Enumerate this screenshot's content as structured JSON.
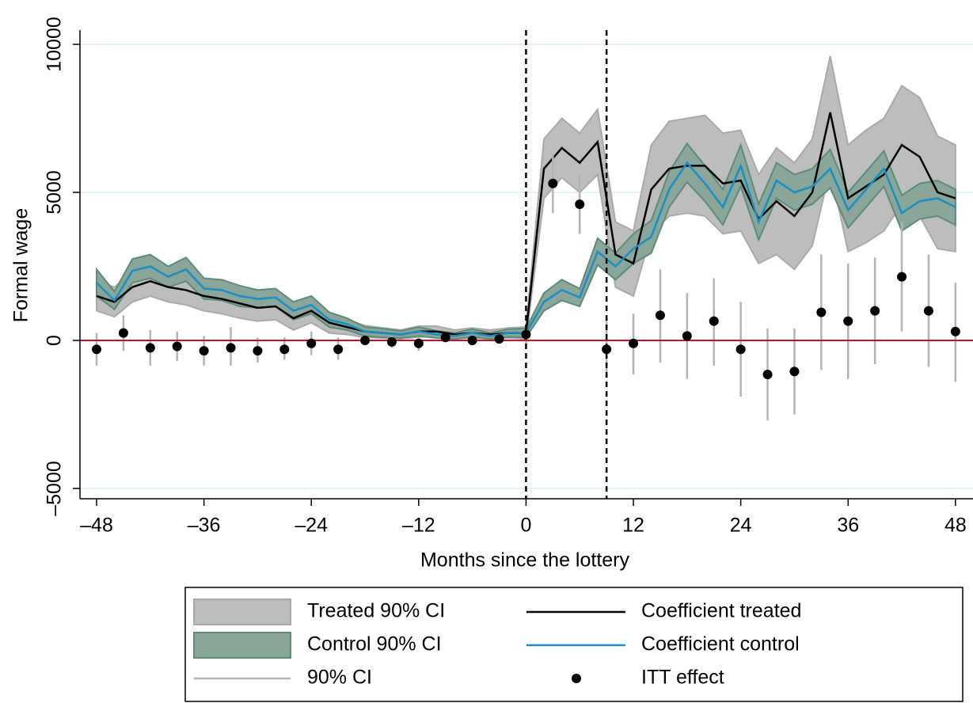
{
  "chart_data": {
    "type": "line",
    "x_label": "Months since the lottery",
    "y_label": "Formal wage",
    "xlim": [
      -49.86,
      49.96
    ],
    "ylim": [
      -5348,
      10481
    ],
    "xticks": [
      {
        "value": -48,
        "label": "–48"
      },
      {
        "value": -36,
        "label": "–36"
      },
      {
        "value": -24,
        "label": "–24"
      },
      {
        "value": -12,
        "label": "–12"
      },
      0,
      12,
      24,
      36,
      48
    ],
    "yticks": [
      {
        "value": -5000,
        "label": "–5000"
      },
      0,
      5000,
      10000
    ],
    "grid": true,
    "grid_color": "#dcefef",
    "zero_line": 0,
    "zero_line_color": "#c8102e",
    "vlines": [
      0,
      9
    ],
    "x": [
      -48,
      -46,
      -44,
      -42,
      -40,
      -38,
      -36,
      -34,
      -32,
      -30,
      -28,
      -26,
      -24,
      -22,
      -20,
      -18,
      -16,
      -14,
      -12,
      -10,
      -8,
      -6,
      -4,
      -2,
      0,
      2,
      4,
      6,
      8,
      10,
      12,
      14,
      16,
      18,
      20,
      22,
      24,
      26,
      28,
      30,
      32,
      34,
      36,
      38,
      40,
      42,
      44,
      46,
      48
    ],
    "bands": [
      {
        "name": "Treated 90% CI",
        "fill": "#bdbdbd",
        "stroke": "#a9a9a9",
        "lower": [
          1000,
          800,
          1300,
          1500,
          1300,
          1200,
          1000,
          900,
          750,
          650,
          700,
          350,
          600,
          250,
          200,
          100,
          80,
          50,
          120,
          120,
          50,
          80,
          50,
          80,
          50,
          4800,
          5500,
          5000,
          5600,
          1800,
          1500,
          3600,
          4200,
          4300,
          4200,
          3600,
          3700,
          2600,
          2900,
          2400,
          3200,
          5800,
          3000,
          3300,
          3700,
          4600,
          4200,
          3100,
          3000
        ],
        "upper": [
          2000,
          1800,
          2300,
          2500,
          2300,
          2200,
          2000,
          1900,
          1750,
          1550,
          1600,
          1150,
          1400,
          950,
          700,
          500,
          420,
          350,
          480,
          480,
          350,
          420,
          350,
          420,
          450,
          6800,
          7500,
          7000,
          7800,
          4000,
          3700,
          6600,
          7400,
          7500,
          7600,
          7000,
          7100,
          5600,
          6500,
          6000,
          6800,
          9600,
          6600,
          7100,
          7500,
          8600,
          8200,
          6900,
          6600
        ]
      },
      {
        "name": "Control 90% CI",
        "fill": "#8aa699",
        "stroke": "#5f8a78",
        "lower": [
          1500,
          1050,
          1950,
          2100,
          1800,
          2000,
          1400,
          1350,
          1150,
          1100,
          1150,
          700,
          900,
          450,
          350,
          150,
          100,
          80,
          150,
          80,
          50,
          120,
          50,
          120,
          100,
          1000,
          1350,
          1150,
          2550,
          2050,
          2600,
          2950,
          4500,
          5350,
          4700,
          3900,
          5200,
          3400,
          4800,
          4400,
          4600,
          5150,
          3800,
          4500,
          5200,
          3700,
          4100,
          4200,
          3900
        ],
        "upper": [
          2400,
          1650,
          2750,
          2900,
          2500,
          2800,
          2100,
          2050,
          1850,
          1700,
          1750,
          1300,
          1500,
          950,
          750,
          450,
          400,
          320,
          450,
          320,
          250,
          380,
          250,
          380,
          400,
          1600,
          2050,
          1750,
          3450,
          2950,
          3600,
          4050,
          5700,
          6650,
          5900,
          5100,
          6600,
          4600,
          6000,
          5600,
          5800,
          6450,
          5000,
          5700,
          6400,
          4900,
          5300,
          5400,
          5100
        ]
      }
    ],
    "series": [
      {
        "name": "Coefficient treated",
        "color": "#000000",
        "values": [
          1500,
          1300,
          1800,
          2000,
          1800,
          1700,
          1500,
          1400,
          1250,
          1100,
          1150,
          750,
          1000,
          600,
          450,
          300,
          250,
          200,
          300,
          300,
          200,
          250,
          200,
          250,
          250,
          5800,
          6500,
          6000,
          6700,
          2900,
          2600,
          5100,
          5800,
          5900,
          5900,
          5300,
          5400,
          4100,
          4700,
          4200,
          5000,
          7700,
          4800,
          5200,
          5600,
          6600,
          6200,
          5000,
          4800
        ]
      },
      {
        "name": "Coefficient control",
        "color": "#1a8fc4",
        "values": [
          1950,
          1350,
          2350,
          2500,
          2150,
          2400,
          1750,
          1700,
          1500,
          1400,
          1450,
          1000,
          1200,
          700,
          550,
          300,
          250,
          200,
          300,
          200,
          150,
          250,
          150,
          250,
          250,
          1300,
          1700,
          1450,
          3000,
          2500,
          3100,
          3500,
          5100,
          6000,
          5300,
          4500,
          5900,
          4000,
          5400,
          5000,
          5200,
          5800,
          4400,
          5100,
          5800,
          4300,
          4700,
          4800,
          4500
        ]
      }
    ],
    "itt": {
      "name": "ITT effect",
      "color": "#000000",
      "ci_name": "90% CI",
      "ci_color": "#b3b3b3",
      "x": [
        -48,
        -45,
        -42,
        -39,
        -36,
        -33,
        -30,
        -27,
        -24,
        -21,
        -18,
        -15,
        -12,
        -9,
        -6,
        -3,
        0,
        3,
        6,
        9,
        12,
        15,
        18,
        21,
        24,
        27,
        30,
        33,
        36,
        39,
        42,
        45,
        48
      ],
      "values": [
        -300,
        250,
        -250,
        -200,
        -350,
        -250,
        -350,
        -300,
        -100,
        -300,
        0,
        -50,
        -100,
        100,
        0,
        50,
        200,
        5300,
        4600,
        -300,
        -100,
        850,
        150,
        650,
        -300,
        -1150,
        -1050,
        950,
        650,
        1000,
        2150,
        1000,
        300
      ],
      "lower": [
        -850,
        -350,
        -850,
        -700,
        -850,
        -850,
        -750,
        -650,
        -500,
        -650,
        -150,
        -250,
        -350,
        -50,
        -150,
        -100,
        -150,
        4300,
        3600,
        -1250,
        -1150,
        -750,
        -1300,
        -850,
        -1900,
        -2700,
        -2500,
        -1000,
        -1300,
        -800,
        300,
        -900,
        -1400
      ],
      "upper": [
        250,
        850,
        350,
        300,
        150,
        450,
        100,
        100,
        300,
        100,
        150,
        150,
        100,
        250,
        150,
        200,
        500,
        6300,
        5600,
        700,
        900,
        2400,
        1600,
        2100,
        1300,
        400,
        400,
        2900,
        2600,
        2800,
        4000,
        2900,
        1950
      ]
    }
  }
}
